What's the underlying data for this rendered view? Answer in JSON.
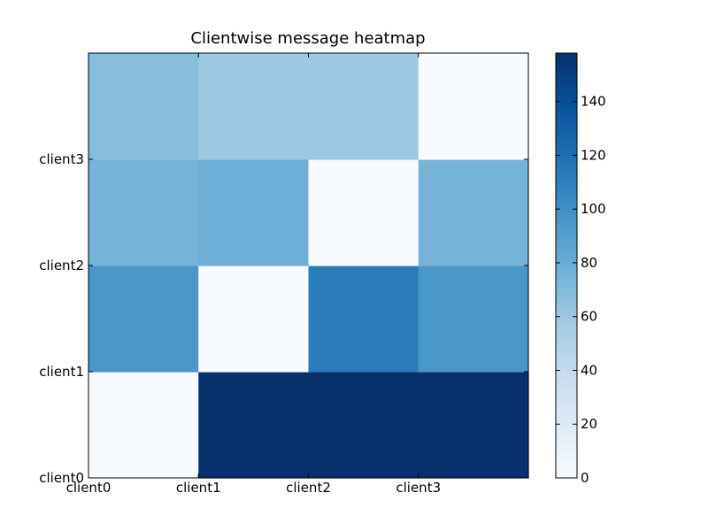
{
  "chart_data": {
    "type": "heatmap",
    "title": "Clientwise message heatmap",
    "xlabel": "",
    "ylabel": "",
    "x_ticks": [
      "client0",
      "client1",
      "client2",
      "client3"
    ],
    "y_ticks": [
      "client0",
      "client1",
      "client2",
      "client3"
    ],
    "grid": false,
    "colormap": "Blues",
    "vmin": 0,
    "vmax": 158,
    "colorbar_ticks": [
      0,
      20,
      40,
      60,
      80,
      100,
      120,
      140
    ],
    "rows": [
      {
        "label": "client0",
        "values": [
          0,
          158,
          158,
          158
        ]
      },
      {
        "label": "client1",
        "values": [
          95,
          0,
          112,
          95
        ]
      },
      {
        "label": "client2",
        "values": [
          75,
          78,
          0,
          75
        ]
      },
      {
        "label": "client3",
        "values": [
          68,
          60,
          60,
          0
        ]
      }
    ]
  }
}
